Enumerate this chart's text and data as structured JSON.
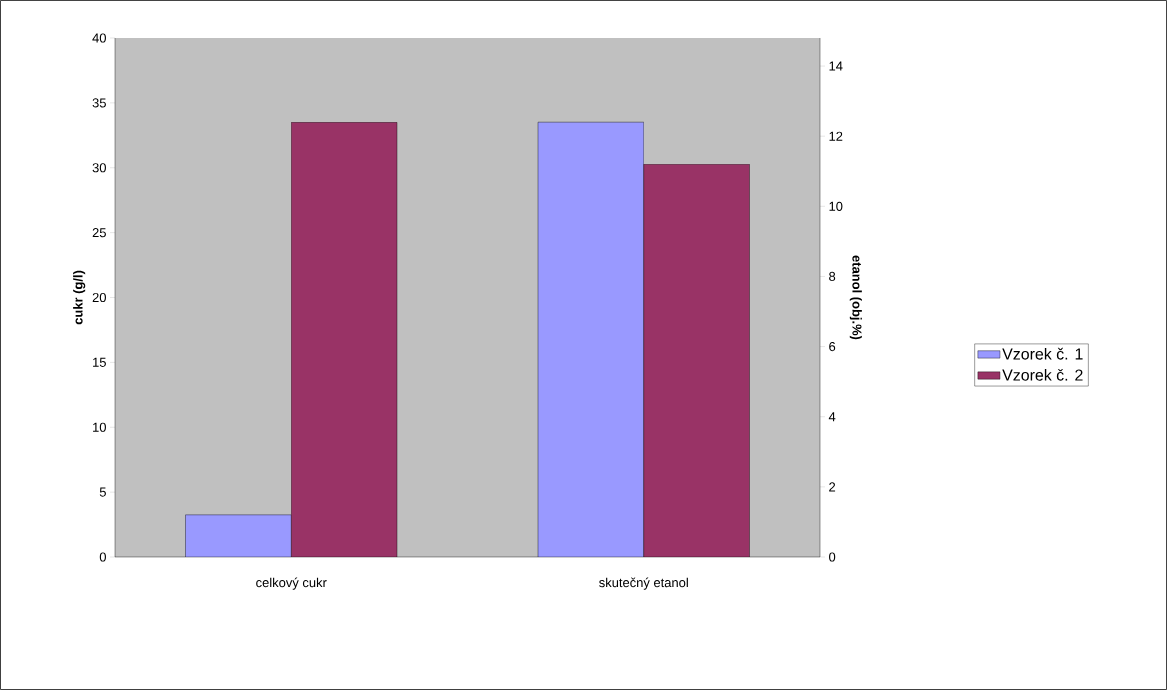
{
  "chart_data": {
    "type": "bar",
    "categories": [
      "celkový cukr",
      "skutečný etanol"
    ],
    "ylabel": "cukr (g/l)",
    "y2label": "etanol (obj.%)",
    "ylim": [
      0,
      40
    ],
    "yticks": [
      0,
      5,
      10,
      15,
      20,
      25,
      30,
      35,
      40
    ],
    "y2lim": [
      0,
      14.8
    ],
    "y2ticks": [
      0,
      2,
      4,
      6,
      8,
      10,
      12,
      14
    ],
    "legend": "right",
    "series": [
      {
        "name": "Vzorek č. 1",
        "color": "#9999ff",
        "values": [
          3.25,
          null
        ]
      },
      {
        "name": "Vzorek č. 2",
        "color": "#993366",
        "values": [
          33.5,
          null
        ]
      },
      {
        "color": "#9999ff",
        "values": [
          null,
          12.4
        ],
        "axis": "y2"
      },
      {
        "color": "#993366",
        "values": [
          null,
          11.2
        ],
        "axis": "y2"
      }
    ]
  }
}
